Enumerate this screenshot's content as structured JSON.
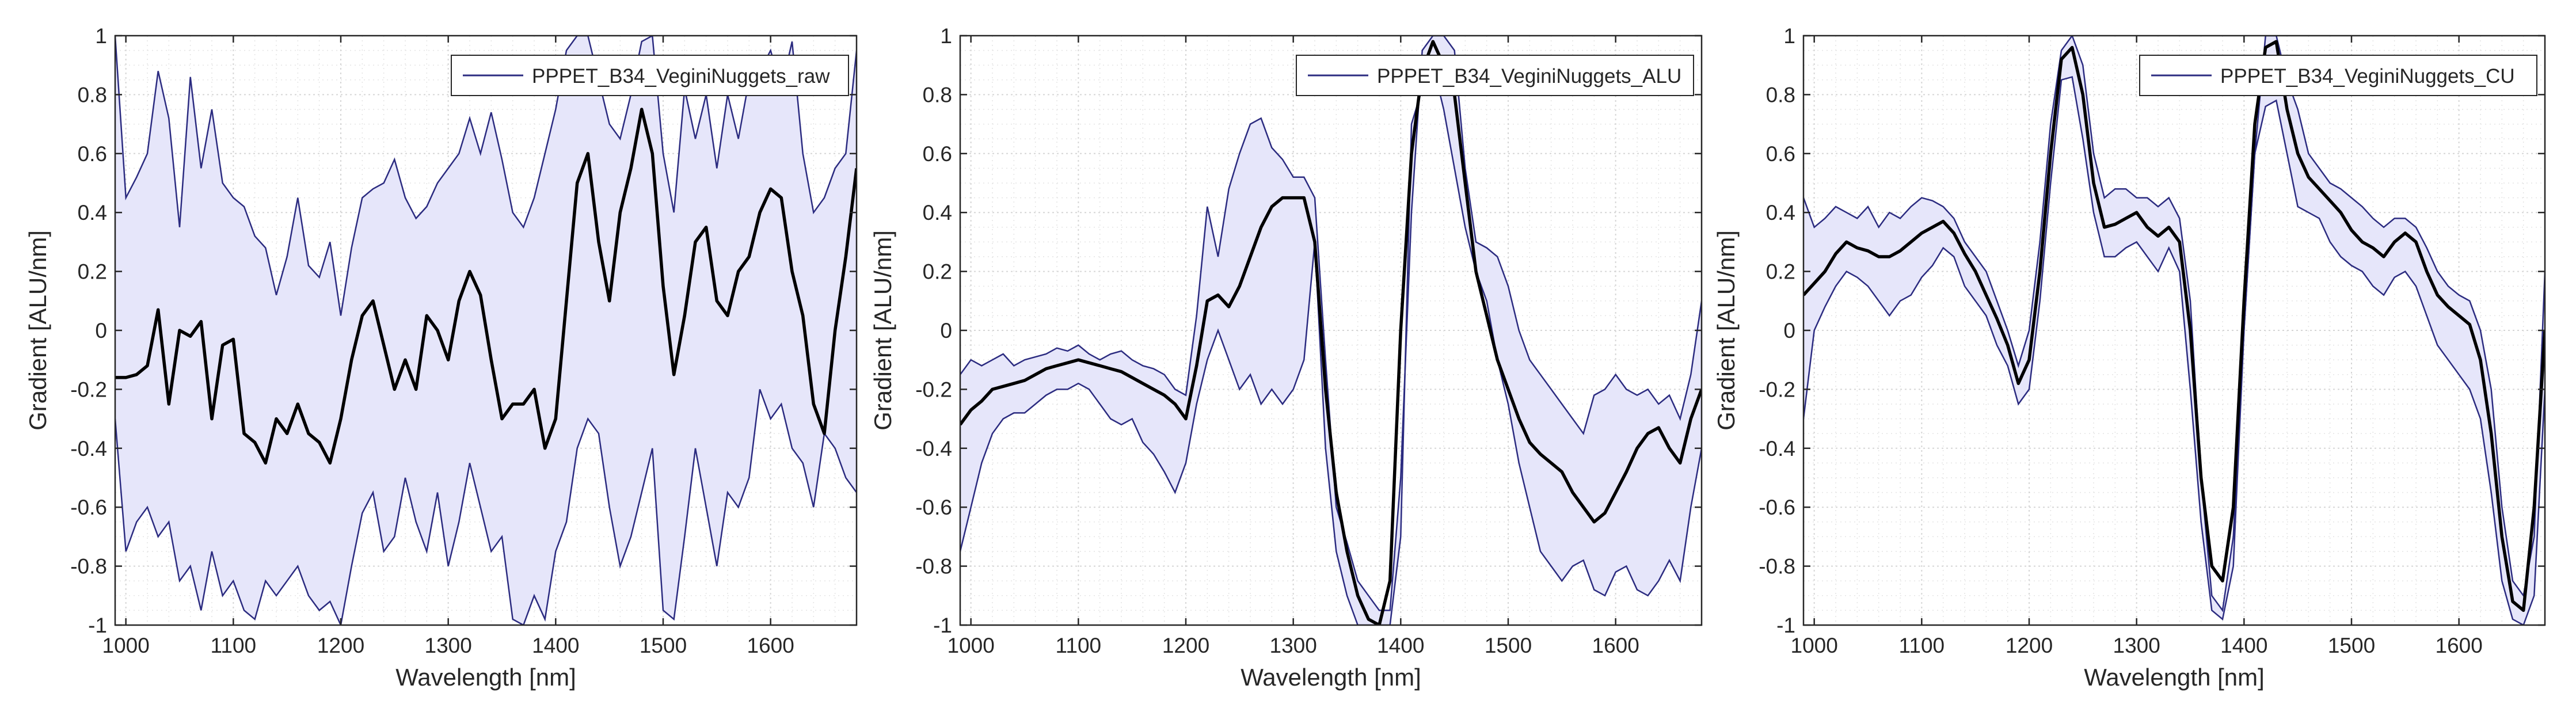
{
  "colors": {
    "band_fill": "#e6e6fa",
    "band_edge": "#2b2b80",
    "mean_line": "#000000",
    "grid": "#d6d6d6",
    "axis": "#262626"
  },
  "chart_data": [
    {
      "type": "line",
      "name": "raw",
      "xlabel": "Wavelength [nm]",
      "ylabel": "Gradient [ALU/nm]",
      "xlim": [
        990,
        1680
      ],
      "ylim": [
        -1,
        1
      ],
      "xticks": [
        1000,
        1100,
        1200,
        1300,
        1400,
        1500,
        1600
      ],
      "yticks": [
        -1,
        -0.8,
        -0.6,
        -0.4,
        -0.2,
        0,
        0.2,
        0.4,
        0.6,
        0.8,
        1
      ],
      "tick_labels_x": [
        "1000",
        "1100",
        "1200",
        "1300",
        "1400",
        "1500",
        "1600"
      ],
      "tick_labels_y": [
        "-1",
        "-0.8",
        "-0.6",
        "-0.4",
        "-0.2",
        "0",
        "0.2",
        "0.4",
        "0.6",
        "0.8",
        "1"
      ],
      "legend": "PPPET_B34_VeginiNuggets_raw",
      "legend_position": "top-right",
      "grid": true,
      "x": [
        990,
        1000,
        1010,
        1020,
        1030,
        1040,
        1050,
        1060,
        1070,
        1080,
        1090,
        1100,
        1110,
        1120,
        1130,
        1140,
        1150,
        1160,
        1170,
        1180,
        1190,
        1200,
        1210,
        1220,
        1230,
        1240,
        1250,
        1260,
        1270,
        1280,
        1290,
        1300,
        1310,
        1320,
        1330,
        1340,
        1350,
        1360,
        1370,
        1380,
        1390,
        1400,
        1410,
        1420,
        1430,
        1440,
        1450,
        1460,
        1470,
        1480,
        1490,
        1500,
        1510,
        1520,
        1530,
        1540,
        1550,
        1560,
        1570,
        1580,
        1590,
        1600,
        1610,
        1620,
        1630,
        1640,
        1650,
        1660,
        1670,
        1680
      ],
      "series": [
        {
          "name": "upper",
          "values": [
            1.0,
            0.45,
            0.52,
            0.6,
            0.88,
            0.72,
            0.35,
            0.86,
            0.55,
            0.75,
            0.5,
            0.45,
            0.42,
            0.32,
            0.28,
            0.12,
            0.25,
            0.45,
            0.22,
            0.18,
            0.3,
            0.05,
            0.28,
            0.45,
            0.48,
            0.5,
            0.58,
            0.45,
            0.38,
            0.42,
            0.5,
            0.55,
            0.6,
            0.72,
            0.6,
            0.74,
            0.58,
            0.4,
            0.35,
            0.45,
            0.6,
            0.75,
            0.95,
            1.0,
            1.0,
            0.85,
            0.7,
            0.65,
            0.8,
            0.98,
            1.0,
            0.6,
            0.4,
            0.82,
            0.65,
            0.8,
            0.55,
            0.8,
            0.65,
            0.85,
            0.88,
            0.95,
            0.82,
            0.98,
            0.6,
            0.4,
            0.45,
            0.55,
            0.6,
            0.95
          ]
        },
        {
          "name": "mean",
          "values": [
            -0.16,
            -0.16,
            -0.15,
            -0.12,
            0.07,
            -0.25,
            0.0,
            -0.02,
            0.03,
            -0.3,
            -0.05,
            -0.03,
            -0.35,
            -0.38,
            -0.45,
            -0.3,
            -0.35,
            -0.25,
            -0.35,
            -0.38,
            -0.45,
            -0.3,
            -0.1,
            0.05,
            0.1,
            -0.05,
            -0.2,
            -0.1,
            -0.2,
            0.05,
            0.0,
            -0.1,
            0.1,
            0.2,
            0.12,
            -0.1,
            -0.3,
            -0.25,
            -0.25,
            -0.2,
            -0.4,
            -0.3,
            0.1,
            0.5,
            0.6,
            0.3,
            0.1,
            0.4,
            0.55,
            0.75,
            0.6,
            0.15,
            -0.15,
            0.05,
            0.3,
            0.35,
            0.1,
            0.05,
            0.2,
            0.25,
            0.4,
            0.48,
            0.45,
            0.2,
            0.05,
            -0.25,
            -0.35,
            0.0,
            0.25,
            0.55
          ]
        },
        {
          "name": "lower",
          "values": [
            -0.3,
            -0.75,
            -0.65,
            -0.6,
            -0.7,
            -0.65,
            -0.85,
            -0.8,
            -0.95,
            -0.75,
            -0.9,
            -0.85,
            -0.95,
            -0.98,
            -0.85,
            -0.9,
            -0.85,
            -0.8,
            -0.9,
            -0.95,
            -0.92,
            -1.0,
            -0.8,
            -0.62,
            -0.55,
            -0.75,
            -0.7,
            -0.5,
            -0.65,
            -0.75,
            -0.55,
            -0.8,
            -0.65,
            -0.45,
            -0.6,
            -0.75,
            -0.7,
            -0.98,
            -1.0,
            -0.9,
            -0.98,
            -0.75,
            -0.65,
            -0.4,
            -0.3,
            -0.35,
            -0.6,
            -0.8,
            -0.7,
            -0.55,
            -0.4,
            -0.95,
            -0.98,
            -0.7,
            -0.4,
            -0.6,
            -0.8,
            -0.55,
            -0.6,
            -0.5,
            -0.2,
            -0.3,
            -0.25,
            -0.4,
            -0.45,
            -0.6,
            -0.35,
            -0.4,
            -0.5,
            -0.55
          ]
        }
      ]
    },
    {
      "type": "line",
      "name": "ALU",
      "xlabel": "Wavelength [nm]",
      "ylabel": "Gradient [ALU/nm]",
      "xlim": [
        990,
        1680
      ],
      "ylim": [
        -1,
        1
      ],
      "xticks": [
        1000,
        1100,
        1200,
        1300,
        1400,
        1500,
        1600
      ],
      "yticks": [
        -1,
        -0.8,
        -0.6,
        -0.4,
        -0.2,
        0,
        0.2,
        0.4,
        0.6,
        0.8,
        1
      ],
      "tick_labels_x": [
        "1000",
        "1100",
        "1200",
        "1300",
        "1400",
        "1500",
        "1600"
      ],
      "tick_labels_y": [
        "-1",
        "-0.8",
        "-0.6",
        "-0.4",
        "-0.2",
        "0",
        "0.2",
        "0.4",
        "0.6",
        "0.8",
        "1"
      ],
      "legend": "PPPET_B34_VeginiNuggets_ALU",
      "legend_position": "top-right",
      "grid": true,
      "x": [
        990,
        1000,
        1010,
        1020,
        1030,
        1040,
        1050,
        1060,
        1070,
        1080,
        1090,
        1100,
        1110,
        1120,
        1130,
        1140,
        1150,
        1160,
        1170,
        1180,
        1190,
        1200,
        1210,
        1220,
        1230,
        1240,
        1250,
        1260,
        1270,
        1280,
        1290,
        1300,
        1310,
        1320,
        1330,
        1340,
        1350,
        1360,
        1370,
        1380,
        1390,
        1400,
        1410,
        1420,
        1430,
        1440,
        1450,
        1460,
        1470,
        1480,
        1490,
        1500,
        1510,
        1520,
        1530,
        1540,
        1550,
        1560,
        1570,
        1580,
        1590,
        1600,
        1610,
        1620,
        1630,
        1640,
        1650,
        1660,
        1670,
        1680
      ],
      "series": [
        {
          "name": "upper",
          "values": [
            -0.15,
            -0.1,
            -0.12,
            -0.1,
            -0.08,
            -0.12,
            -0.1,
            -0.09,
            -0.08,
            -0.06,
            -0.07,
            -0.05,
            -0.08,
            -0.1,
            -0.08,
            -0.07,
            -0.1,
            -0.12,
            -0.13,
            -0.15,
            -0.2,
            -0.22,
            0.05,
            0.42,
            0.25,
            0.48,
            0.6,
            0.7,
            0.72,
            0.62,
            0.58,
            0.52,
            0.52,
            0.45,
            -0.1,
            -0.6,
            -0.72,
            -0.85,
            -0.9,
            -0.95,
            -0.95,
            -0.5,
            0.4,
            0.95,
            1.0,
            1.0,
            0.95,
            0.55,
            0.3,
            0.28,
            0.25,
            0.15,
            0.0,
            -0.1,
            -0.15,
            -0.2,
            -0.25,
            -0.3,
            -0.35,
            -0.22,
            -0.2,
            -0.15,
            -0.2,
            -0.22,
            -0.2,
            -0.25,
            -0.22,
            -0.3,
            -0.15,
            0.1
          ]
        },
        {
          "name": "mean",
          "values": [
            -0.32,
            -0.27,
            -0.24,
            -0.2,
            -0.19,
            -0.18,
            -0.17,
            -0.15,
            -0.13,
            -0.12,
            -0.11,
            -0.1,
            -0.11,
            -0.12,
            -0.13,
            -0.14,
            -0.16,
            -0.18,
            -0.2,
            -0.22,
            -0.25,
            -0.3,
            -0.12,
            0.1,
            0.12,
            0.08,
            0.15,
            0.25,
            0.35,
            0.42,
            0.45,
            0.45,
            0.45,
            0.3,
            -0.2,
            -0.55,
            -0.75,
            -0.9,
            -0.98,
            -1.0,
            -0.85,
            0.0,
            0.6,
            0.88,
            0.98,
            0.9,
            0.8,
            0.5,
            0.2,
            0.05,
            -0.1,
            -0.2,
            -0.3,
            -0.38,
            -0.42,
            -0.45,
            -0.48,
            -0.55,
            -0.6,
            -0.65,
            -0.62,
            -0.55,
            -0.48,
            -0.4,
            -0.35,
            -0.33,
            -0.4,
            -0.45,
            -0.3,
            -0.2
          ]
        },
        {
          "name": "lower",
          "values": [
            -0.75,
            -0.6,
            -0.45,
            -0.35,
            -0.3,
            -0.28,
            -0.28,
            -0.25,
            -0.22,
            -0.2,
            -0.2,
            -0.18,
            -0.2,
            -0.25,
            -0.3,
            -0.32,
            -0.3,
            -0.38,
            -0.42,
            -0.48,
            -0.55,
            -0.45,
            -0.25,
            -0.1,
            0.0,
            -0.1,
            -0.2,
            -0.15,
            -0.25,
            -0.2,
            -0.25,
            -0.2,
            -0.1,
            0.3,
            -0.4,
            -0.75,
            -0.9,
            -1.0,
            -1.0,
            -1.0,
            -1.0,
            -0.7,
            0.7,
            0.82,
            0.9,
            0.75,
            0.55,
            0.35,
            0.2,
            0.1,
            -0.1,
            -0.25,
            -0.45,
            -0.6,
            -0.75,
            -0.8,
            -0.85,
            -0.8,
            -0.78,
            -0.88,
            -0.9,
            -0.82,
            -0.8,
            -0.88,
            -0.9,
            -0.85,
            -0.78,
            -0.85,
            -0.6,
            -0.4
          ]
        }
      ]
    },
    {
      "type": "line",
      "name": "CU",
      "xlabel": "Wavelength [nm]",
      "ylabel": "Gradient [ALU/nm]",
      "xlim": [
        990,
        1680
      ],
      "ylim": [
        -1,
        1
      ],
      "xticks": [
        1000,
        1100,
        1200,
        1300,
        1400,
        1500,
        1600
      ],
      "yticks": [
        -1,
        -0.8,
        -0.6,
        -0.4,
        -0.2,
        0,
        0.2,
        0.4,
        0.6,
        0.8,
        1
      ],
      "tick_labels_x": [
        "1000",
        "1100",
        "1200",
        "1300",
        "1400",
        "1500",
        "1600"
      ],
      "tick_labels_y": [
        "-1",
        "-0.8",
        "-0.6",
        "-0.4",
        "-0.2",
        "0",
        "0.2",
        "0.4",
        "0.6",
        "0.8",
        "1"
      ],
      "legend": "PPPET_B34_VeginiNuggets_CU",
      "legend_position": "top-right",
      "grid": true,
      "x": [
        990,
        1000,
        1010,
        1020,
        1030,
        1040,
        1050,
        1060,
        1070,
        1080,
        1090,
        1100,
        1110,
        1120,
        1130,
        1140,
        1150,
        1160,
        1170,
        1180,
        1190,
        1200,
        1210,
        1220,
        1230,
        1240,
        1250,
        1260,
        1270,
        1280,
        1290,
        1300,
        1310,
        1320,
        1330,
        1340,
        1350,
        1360,
        1370,
        1380,
        1390,
        1400,
        1410,
        1420,
        1430,
        1440,
        1450,
        1460,
        1470,
        1480,
        1490,
        1500,
        1510,
        1520,
        1530,
        1540,
        1550,
        1560,
        1570,
        1580,
        1590,
        1600,
        1610,
        1620,
        1630,
        1640,
        1650,
        1660,
        1670,
        1680
      ],
      "series": [
        {
          "name": "upper",
          "values": [
            0.45,
            0.35,
            0.38,
            0.42,
            0.4,
            0.38,
            0.42,
            0.35,
            0.4,
            0.38,
            0.42,
            0.45,
            0.44,
            0.42,
            0.38,
            0.3,
            0.25,
            0.2,
            0.1,
            0.0,
            -0.12,
            0.0,
            0.3,
            0.7,
            0.95,
            1.0,
            0.9,
            0.6,
            0.45,
            0.48,
            0.48,
            0.45,
            0.45,
            0.42,
            0.45,
            0.38,
            0.1,
            -0.5,
            -0.9,
            -0.95,
            -0.7,
            0.0,
            0.6,
            1.0,
            1.0,
            0.85,
            0.75,
            0.6,
            0.55,
            0.5,
            0.48,
            0.45,
            0.42,
            0.38,
            0.35,
            0.38,
            0.38,
            0.35,
            0.28,
            0.2,
            0.15,
            0.12,
            0.1,
            0.0,
            -0.2,
            -0.6,
            -0.85,
            -0.9,
            -0.7,
            0.2
          ]
        },
        {
          "name": "mean",
          "values": [
            0.12,
            0.16,
            0.2,
            0.26,
            0.3,
            0.28,
            0.27,
            0.25,
            0.25,
            0.27,
            0.3,
            0.33,
            0.35,
            0.37,
            0.33,
            0.26,
            0.2,
            0.12,
            0.04,
            -0.05,
            -0.18,
            -0.1,
            0.2,
            0.6,
            0.92,
            0.96,
            0.8,
            0.5,
            0.35,
            0.36,
            0.38,
            0.4,
            0.35,
            0.32,
            0.35,
            0.3,
            0.0,
            -0.5,
            -0.8,
            -0.85,
            -0.6,
            0.1,
            0.7,
            0.96,
            0.98,
            0.75,
            0.6,
            0.52,
            0.48,
            0.44,
            0.4,
            0.34,
            0.3,
            0.28,
            0.25,
            0.3,
            0.33,
            0.3,
            0.2,
            0.12,
            0.08,
            0.05,
            0.02,
            -0.1,
            -0.35,
            -0.7,
            -0.92,
            -0.95,
            -0.6,
            0.0
          ]
        },
        {
          "name": "lower",
          "values": [
            -0.3,
            0.0,
            0.08,
            0.15,
            0.2,
            0.18,
            0.15,
            0.1,
            0.05,
            0.1,
            0.12,
            0.18,
            0.22,
            0.28,
            0.25,
            0.15,
            0.1,
            0.05,
            -0.05,
            -0.12,
            -0.25,
            -0.2,
            0.1,
            0.5,
            0.85,
            0.86,
            0.65,
            0.4,
            0.25,
            0.25,
            0.28,
            0.3,
            0.25,
            0.2,
            0.28,
            0.2,
            -0.2,
            -0.65,
            -0.95,
            -0.98,
            -0.8,
            0.0,
            0.6,
            0.76,
            0.78,
            0.6,
            0.42,
            0.4,
            0.38,
            0.3,
            0.25,
            0.22,
            0.2,
            0.15,
            0.12,
            0.18,
            0.2,
            0.15,
            0.05,
            -0.05,
            -0.1,
            -0.15,
            -0.2,
            -0.3,
            -0.55,
            -0.85,
            -0.98,
            -1.0,
            -0.9,
            -0.2
          ]
        }
      ]
    }
  ]
}
